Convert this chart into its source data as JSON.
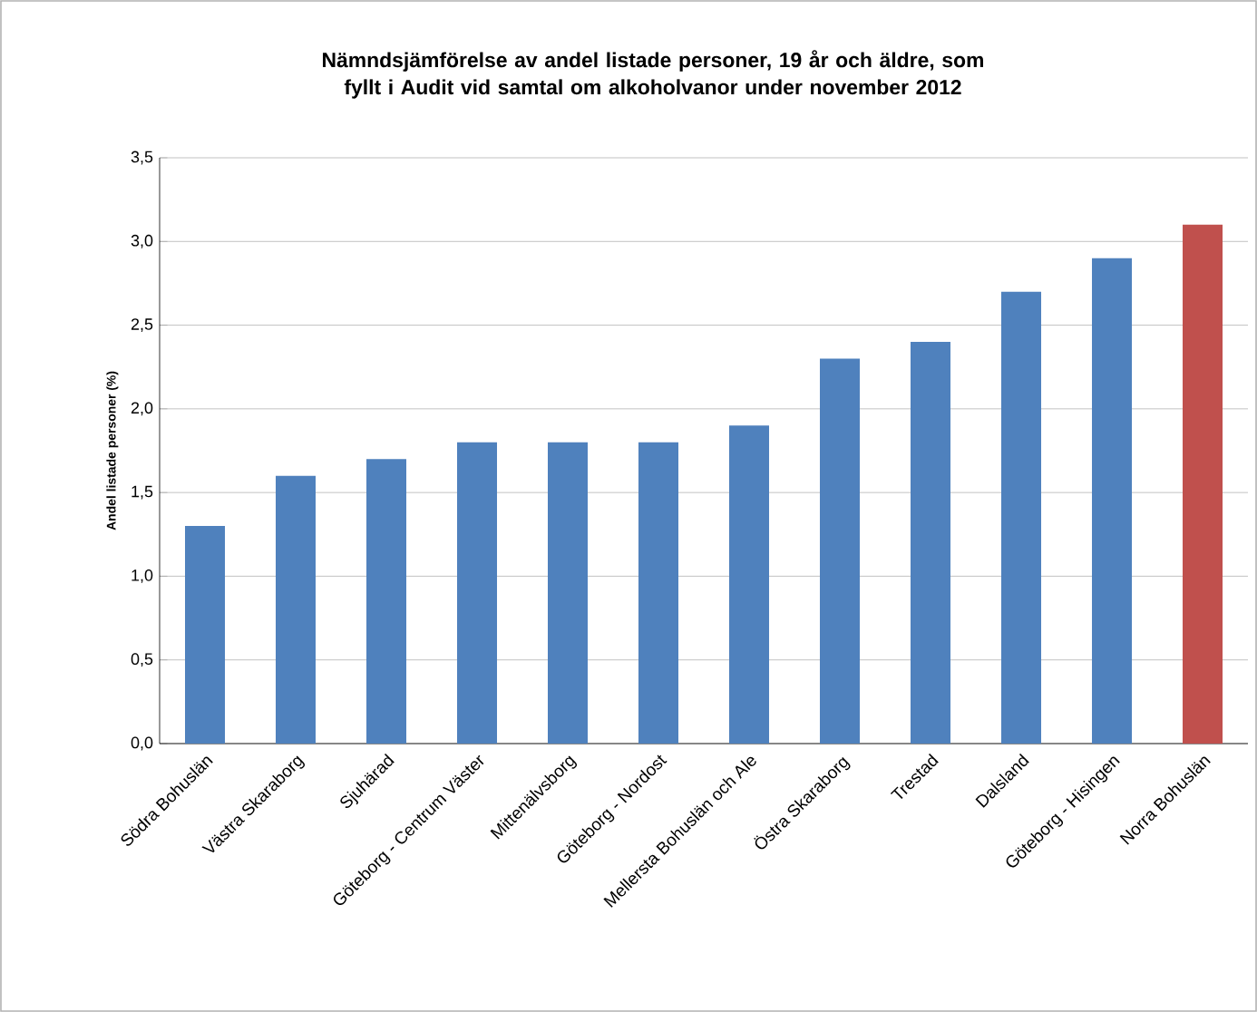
{
  "chart_data": {
    "type": "bar",
    "title": "Nämndsjämförelse av andel listade personer, 19 år och äldre, som fyllt i Audit vid samtal om alkoholvanor under november 2012",
    "ylabel": "Andel listade personer (%)",
    "categories": [
      "Södra Bohuslän",
      "Västra Skaraborg",
      "Sjuhärad",
      "Göteborg - Centrum Väster",
      "Mittenälvsborg",
      "Göteborg - Nordost",
      "Mellersta Bohuslän och Ale",
      "Östra Skaraborg",
      "Trestad",
      "Dalsland",
      "Göteborg - Hisingen",
      "Norra Bohuslän"
    ],
    "values": [
      1.3,
      1.6,
      1.7,
      1.8,
      1.8,
      1.8,
      1.9,
      2.3,
      2.4,
      2.7,
      2.9,
      3.1
    ],
    "colors": [
      "#4f81bd",
      "#4f81bd",
      "#4f81bd",
      "#4f81bd",
      "#4f81bd",
      "#4f81bd",
      "#4f81bd",
      "#4f81bd",
      "#4f81bd",
      "#4f81bd",
      "#4f81bd",
      "#c0504d"
    ],
    "ylim": [
      0,
      3.5
    ],
    "yticks": [
      {
        "value": 0,
        "label": "0,0"
      },
      {
        "value": 0.5,
        "label": "0,5"
      },
      {
        "value": 1,
        "label": "1,0"
      },
      {
        "value": 1.5,
        "label": "1,5"
      },
      {
        "value": 2,
        "label": "2,0"
      },
      {
        "value": 2.5,
        "label": "2,5"
      },
      {
        "value": 3,
        "label": "3,0"
      },
      {
        "value": 3.5,
        "label": "3,5"
      }
    ],
    "grid": "y"
  }
}
